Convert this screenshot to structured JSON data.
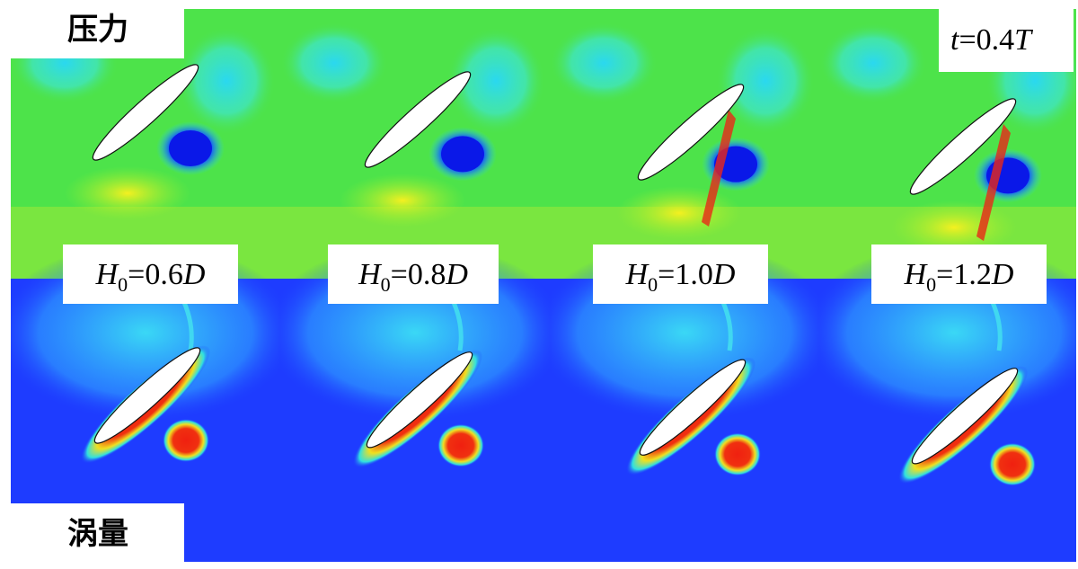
{
  "top_label": "压力",
  "bottom_label": "涡量",
  "time_label": {
    "var": "t",
    "value": "=0.4",
    "unit": "T"
  },
  "panels": [
    {
      "label": {
        "var": "H",
        "subscript": "0",
        "value": "=0.6",
        "unit": "D"
      }
    },
    {
      "label": {
        "var": "H",
        "subscript": "0",
        "value": "=0.8",
        "unit": "D"
      }
    },
    {
      "label": {
        "var": "H",
        "subscript": "0",
        "value": "=1.0",
        "unit": "D"
      }
    },
    {
      "label": {
        "var": "H",
        "subscript": "0",
        "value": "=1.2",
        "unit": "D"
      }
    }
  ]
}
